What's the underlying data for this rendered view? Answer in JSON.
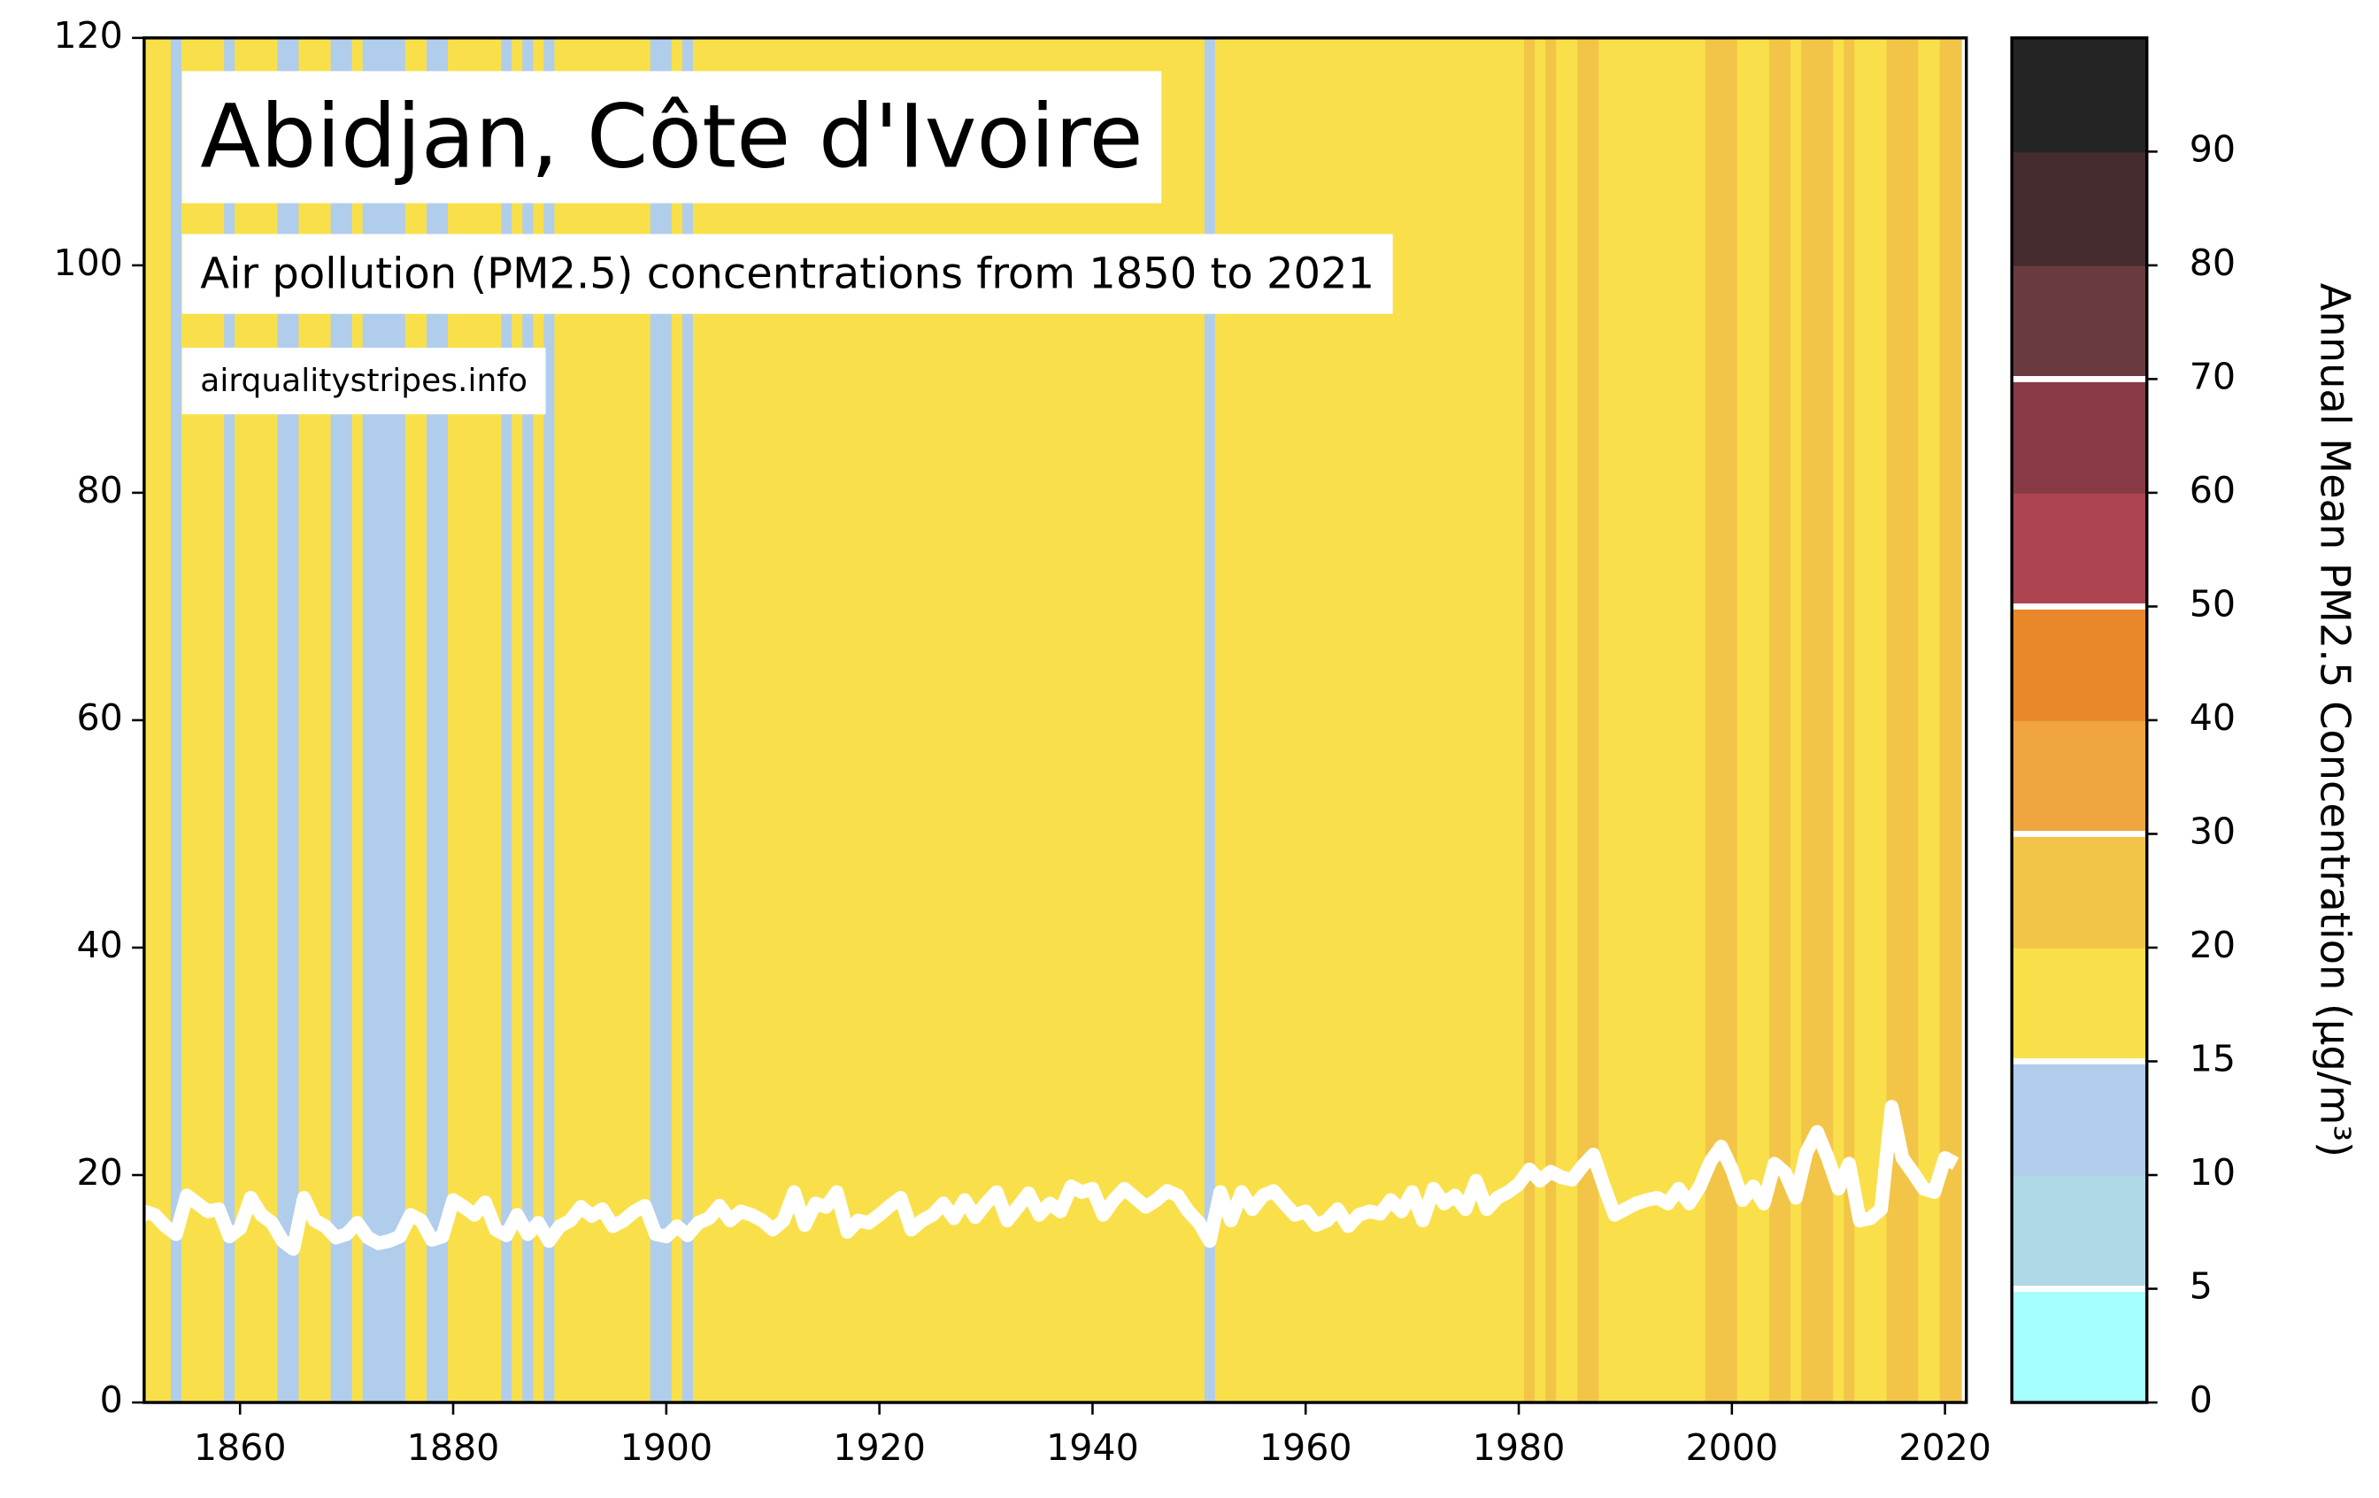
{
  "chart_data": {
    "type": "stripes",
    "title": "Abidjan, Côte d'Ivoire",
    "subtitle": "Air pollution (PM2.5) concentrations from 1850 to 2021",
    "source": "airqualitystripes.info",
    "colorbar_label": "Annual Mean PM2.5 Concentration (μg/m³)",
    "x": [
      1850,
      1851,
      1852,
      1853,
      1854,
      1855,
      1856,
      1857,
      1858,
      1859,
      1860,
      1861,
      1862,
      1863,
      1864,
      1865,
      1866,
      1867,
      1868,
      1869,
      1870,
      1871,
      1872,
      1873,
      1874,
      1875,
      1876,
      1877,
      1878,
      1879,
      1880,
      1881,
      1882,
      1883,
      1884,
      1885,
      1886,
      1887,
      1888,
      1889,
      1890,
      1891,
      1892,
      1893,
      1894,
      1895,
      1896,
      1897,
      1898,
      1899,
      1900,
      1901,
      1902,
      1903,
      1904,
      1905,
      1906,
      1907,
      1908,
      1909,
      1910,
      1911,
      1912,
      1913,
      1914,
      1915,
      1916,
      1917,
      1918,
      1919,
      1920,
      1921,
      1922,
      1923,
      1924,
      1925,
      1926,
      1927,
      1928,
      1929,
      1930,
      1931,
      1932,
      1933,
      1934,
      1935,
      1936,
      1937,
      1938,
      1939,
      1940,
      1941,
      1942,
      1943,
      1944,
      1945,
      1946,
      1947,
      1948,
      1949,
      1950,
      1951,
      1952,
      1953,
      1954,
      1955,
      1956,
      1957,
      1958,
      1959,
      1960,
      1961,
      1962,
      1963,
      1964,
      1965,
      1966,
      1967,
      1968,
      1969,
      1970,
      1971,
      1972,
      1973,
      1974,
      1975,
      1976,
      1977,
      1978,
      1979,
      1980,
      1981,
      1982,
      1983,
      1984,
      1985,
      1986,
      1987,
      1988,
      1989,
      1990,
      1991,
      1992,
      1993,
      1994,
      1995,
      1996,
      1997,
      1998,
      1999,
      2000,
      2001,
      2002,
      2003,
      2004,
      2005,
      2006,
      2007,
      2008,
      2009,
      2010,
      2011,
      2012,
      2013,
      2014,
      2015,
      2016,
      2017,
      2018,
      2019,
      2020,
      2021
    ],
    "values": [
      15.0,
      16.8,
      16.5,
      15.5,
      14.8,
      18.2,
      17.5,
      16.8,
      17.0,
      14.6,
      15.3,
      18.0,
      16.5,
      15.8,
      14.2,
      13.5,
      18.0,
      16.0,
      15.5,
      14.5,
      14.8,
      15.8,
      14.5,
      14.0,
      14.2,
      14.6,
      16.5,
      16.0,
      14.3,
      14.6,
      17.8,
      17.2,
      16.5,
      17.6,
      15.2,
      14.7,
      16.5,
      14.8,
      15.8,
      14.2,
      15.5,
      16.0,
      17.2,
      16.4,
      17.0,
      15.5,
      16.0,
      16.8,
      17.3,
      14.8,
      14.6,
      15.5,
      14.7,
      15.8,
      16.2,
      17.3,
      16.0,
      16.8,
      16.5,
      16.0,
      15.2,
      16.0,
      18.5,
      15.6,
      17.5,
      17.2,
      18.5,
      15.0,
      16.0,
      15.8,
      16.5,
      17.3,
      18.0,
      15.2,
      16.0,
      16.5,
      17.5,
      16.2,
      17.8,
      16.3,
      17.5,
      18.5,
      16.0,
      17.2,
      18.4,
      16.5,
      17.5,
      16.8,
      19.0,
      18.5,
      18.8,
      16.5,
      17.8,
      18.8,
      18.0,
      17.2,
      17.8,
      18.6,
      18.2,
      16.8,
      15.8,
      14.2,
      18.5,
      16.0,
      18.5,
      17.0,
      18.2,
      18.6,
      17.5,
      16.5,
      16.8,
      15.6,
      16.0,
      17.0,
      15.5,
      16.5,
      16.8,
      16.6,
      17.8,
      16.8,
      18.5,
      16.0,
      18.8,
      17.5,
      18.2,
      17.0,
      19.5,
      17.0,
      18.0,
      18.5,
      19.2,
      20.5,
      19.5,
      20.3,
      19.8,
      19.6,
      20.8,
      21.8,
      19.0,
      16.5,
      17.0,
      17.5,
      17.8,
      18.0,
      17.5,
      18.8,
      17.5,
      19.0,
      21.2,
      22.5,
      20.5,
      17.8,
      19.0,
      17.5,
      21.0,
      20.2,
      18.0,
      22.0,
      23.8,
      21.5,
      18.8,
      21.0,
      16.0,
      16.2,
      17.0,
      26.0,
      21.5,
      20.2,
      18.8,
      18.5,
      21.5,
      21.0
    ],
    "line_color": "#ffffff",
    "xlim": [
      1851,
      2022
    ],
    "ylim": [
      0,
      120
    ],
    "xticks": [
      1860,
      1880,
      1900,
      1920,
      1940,
      1960,
      1980,
      2000,
      2020
    ],
    "yticks": [
      0,
      20,
      40,
      60,
      80,
      100,
      120
    ],
    "colorbar_ticks": [
      0,
      5,
      10,
      15,
      20,
      30,
      40,
      50,
      60,
      70,
      80,
      90
    ],
    "colorbar_colors": [
      "#a6ffff",
      "#aed8e6",
      "#b0cdeb",
      "#f9e04a",
      "#f2c548",
      "#f0a540",
      "#e8882a",
      "#ad4452",
      "#883a46",
      "#6b3a3e",
      "#452c2f",
      "#242424"
    ],
    "guideline_marks": [
      5,
      15,
      30,
      50,
      70
    ]
  }
}
